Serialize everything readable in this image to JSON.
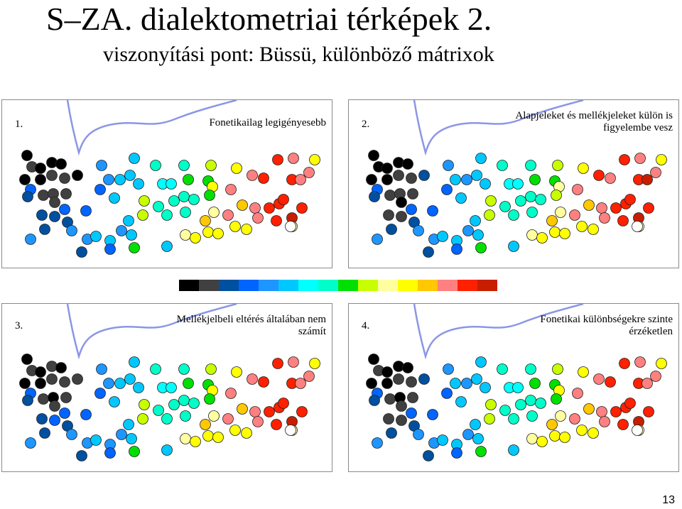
{
  "header": {
    "title": "S–ZA. dialektometriai térképek 2.",
    "subtitle": "viszonyítási pont: Büssü, különböző mátrixok"
  },
  "panels": [
    {
      "number": "1.",
      "caption": "Fonetikailag legigényesebb"
    },
    {
      "number": "2.",
      "caption": "Alapjeleket és mellékjeleket külön is figyelembe vesz"
    },
    {
      "number": "3.",
      "caption": "Mellékjelbeli eltérés általában nem számít"
    },
    {
      "number": "4.",
      "caption": "Fonetikai különbségekre szinte érzéketlen"
    }
  ],
  "legend": {
    "colors": [
      "#000000",
      "#404040",
      "#0050a0",
      "#0064ff",
      "#1e96ff",
      "#00c8ff",
      "#00ffff",
      "#00ffc8",
      "#00e000",
      "#c8ff00",
      "#ffffa0",
      "#ffff00",
      "#ffc800",
      "#ff8080",
      "#ff2000",
      "#c81e00"
    ]
  },
  "page_number": "13"
}
